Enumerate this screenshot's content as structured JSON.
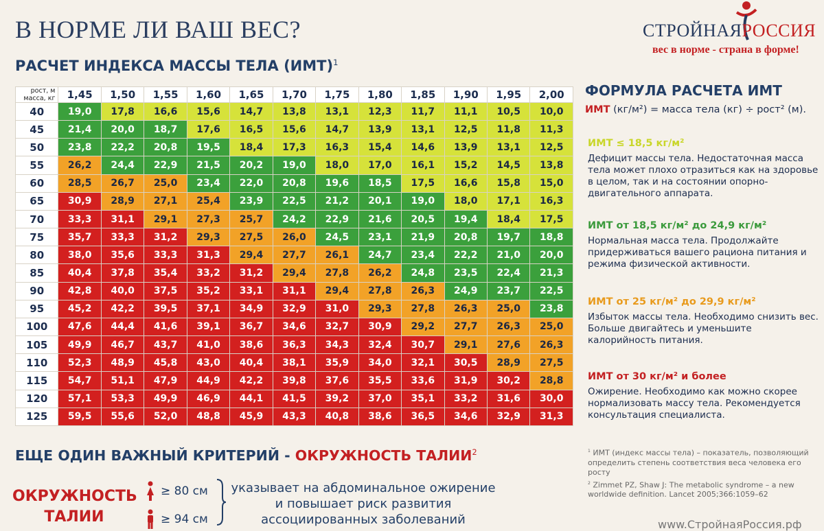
{
  "title": "В НОРМЕ ЛИ ВАШ ВЕС?",
  "logo": {
    "name_part1": "СТРОЙНАЯ",
    "name_part2": "РОССИЯ",
    "slogan": "вес в норме - страна в форме!"
  },
  "subtitle": "РАСЧЕТ ИНДЕКСА МАССЫ ТЕЛА (ИМТ)",
  "subtitle_ref": "1",
  "table": {
    "corner_top": "рост, м",
    "corner_bottom": "масса, кг",
    "heights": [
      "1,45",
      "1,50",
      "1,55",
      "1,60",
      "1,65",
      "1,70",
      "1,75",
      "1,80",
      "1,85",
      "1,90",
      "1,95",
      "2,00"
    ],
    "rows": [
      {
        "mass": "40",
        "values": [
          "19,0",
          "17,8",
          "16,6",
          "15,6",
          "14,7",
          "13,8",
          "13,1",
          "12,3",
          "11,7",
          "11,1",
          "10,5",
          "10,0"
        ]
      },
      {
        "mass": "45",
        "values": [
          "21,4",
          "20,0",
          "18,7",
          "17,6",
          "16,5",
          "15,6",
          "14,7",
          "13,9",
          "13,1",
          "12,5",
          "11,8",
          "11,3"
        ]
      },
      {
        "mass": "50",
        "values": [
          "23,8",
          "22,2",
          "20,8",
          "19,5",
          "18,4",
          "17,3",
          "16,3",
          "15,4",
          "14,6",
          "13,9",
          "13,1",
          "12,5"
        ]
      },
      {
        "mass": "55",
        "values": [
          "26,2",
          "24,4",
          "22,9",
          "21,5",
          "20,2",
          "19,0",
          "18,0",
          "17,0",
          "16,1",
          "15,2",
          "14,5",
          "13,8"
        ]
      },
      {
        "mass": "60",
        "values": [
          "28,5",
          "26,7",
          "25,0",
          "23,4",
          "22,0",
          "20,8",
          "19,6",
          "18,5",
          "17,5",
          "16,6",
          "15,8",
          "15,0"
        ]
      },
      {
        "mass": "65",
        "values": [
          "30,9",
          "28,9",
          "27,1",
          "25,4",
          "23,9",
          "22,5",
          "21,2",
          "20,1",
          "19,0",
          "18,0",
          "17,1",
          "16,3"
        ]
      },
      {
        "mass": "70",
        "values": [
          "33,3",
          "31,1",
          "29,1",
          "27,3",
          "25,7",
          "24,2",
          "22,9",
          "21,6",
          "20,5",
          "19,4",
          "18,4",
          "17,5"
        ]
      },
      {
        "mass": "75",
        "values": [
          "35,7",
          "33,3",
          "31,2",
          "29,3",
          "27,5",
          "26,0",
          "24,5",
          "23,1",
          "21,9",
          "20,8",
          "19,7",
          "18,8"
        ]
      },
      {
        "mass": "80",
        "values": [
          "38,0",
          "35,6",
          "33,3",
          "31,3",
          "29,4",
          "27,7",
          "26,1",
          "24,7",
          "23,4",
          "22,2",
          "21,0",
          "20,0"
        ]
      },
      {
        "mass": "85",
        "values": [
          "40,4",
          "37,8",
          "35,4",
          "33,2",
          "31,2",
          "29,4",
          "27,8",
          "26,2",
          "24,8",
          "23,5",
          "22,4",
          "21,3"
        ]
      },
      {
        "mass": "90",
        "values": [
          "42,8",
          "40,0",
          "37,5",
          "35,2",
          "33,1",
          "31,1",
          "29,4",
          "27,8",
          "26,3",
          "24,9",
          "23,7",
          "22,5"
        ]
      },
      {
        "mass": "95",
        "values": [
          "45,2",
          "42,2",
          "39,5",
          "37,1",
          "34,9",
          "32,9",
          "31,0",
          "29,3",
          "27,8",
          "26,3",
          "25,0",
          "23,8"
        ]
      },
      {
        "mass": "100",
        "values": [
          "47,6",
          "44,4",
          "41,6",
          "39,1",
          "36,7",
          "34,6",
          "32,7",
          "30,9",
          "29,2",
          "27,7",
          "26,3",
          "25,0"
        ]
      },
      {
        "mass": "105",
        "values": [
          "49,9",
          "46,7",
          "43,7",
          "41,0",
          "38,6",
          "36,3",
          "34,3",
          "32,4",
          "30,7",
          "29,1",
          "27,6",
          "26,3"
        ]
      },
      {
        "mass": "110",
        "values": [
          "52,3",
          "48,9",
          "45,8",
          "43,0",
          "40,4",
          "38,1",
          "35,9",
          "34,0",
          "32,1",
          "30,5",
          "28,9",
          "27,5"
        ]
      },
      {
        "mass": "115",
        "values": [
          "54,7",
          "51,1",
          "47,9",
          "44,9",
          "42,2",
          "39,8",
          "37,6",
          "35,5",
          "33,6",
          "31,9",
          "30,2",
          "28,8"
        ]
      },
      {
        "mass": "120",
        "values": [
          "57,1",
          "53,3",
          "49,9",
          "46,9",
          "44,1",
          "41,5",
          "39,2",
          "37,0",
          "35,1",
          "33,2",
          "31,6",
          "30,0"
        ]
      },
      {
        "mass": "125",
        "values": [
          "59,5",
          "55,6",
          "52,0",
          "48,8",
          "45,9",
          "43,3",
          "40,8",
          "38,6",
          "36,5",
          "34,6",
          "32,9",
          "31,3"
        ]
      }
    ]
  },
  "colors": {
    "underweight": "#d6e23a",
    "normal": "#3ba03c",
    "overweight": "#f2a227",
    "obese": "#d3201f"
  },
  "formula": {
    "heading": "ФОРМУЛА РАСЧЕТА ИМТ",
    "lhs": "ИМТ",
    "rhs": "(кг/м²) = масса тела (кг) ÷ рост² (м)."
  },
  "categories": [
    {
      "key": "underweight",
      "heading": "ИМТ ≤ 18,5 кг/м²",
      "color": "#c9d629",
      "text": "Дефицит массы тела. Недостаточная масса тела может плохо отразиться как на здоровье в целом, так и на состоянии опорно-двигательного аппарата."
    },
    {
      "key": "normal",
      "heading": "ИМТ от 18,5 кг/м² до 24,9 кг/м²",
      "color": "#3b9a3c",
      "text": "Нормальная масса тела. Продолжайте придерживаться вашего рациона питания и режима физической активности."
    },
    {
      "key": "overweight",
      "heading": "ИМТ от 25 кг/м² до 29,9 кг/м²",
      "color": "#e89a1c",
      "text": "Избыток массы тела. Необходимо снизить вес. Больше двигайтесь и уменьшите калорийность питания."
    },
    {
      "key": "obese",
      "heading": "ИМТ от 30 кг/м² и более",
      "color": "#c32022",
      "text": "Ожирение. Необходимо как можно скорее нормализовать массу тела. Рекомендуется консультация специалиста."
    }
  ],
  "footnotes": [
    {
      "mark": "1",
      "text": "ИМТ (индекс массы тела) – показатель, позволяющий определить степень соответствия веса человека его росту"
    },
    {
      "mark": "2",
      "text": "Zimmet PZ, Shaw J: The metabolic syndrome – a new worldwide definition. Lancet 2005;366:1059–62"
    }
  ],
  "criterion": {
    "part1": "ЕЩЕ ОДИН ВАЖНЫЙ КРИТЕРИЙ - ",
    "part2": "ОКРУЖНОСТЬ ТАЛИИ",
    "ref": "2"
  },
  "waist": {
    "label_line1": "ОКРУЖНОСТЬ",
    "label_line2": "ТАЛИИ",
    "female": "≥ 80 см",
    "male": "≥ 94 см",
    "description": "указывает на абдоминальное ожирение и повышает риск развития ассоциированных заболеваний"
  },
  "website": "www.СтройнаяРоссия.рф"
}
